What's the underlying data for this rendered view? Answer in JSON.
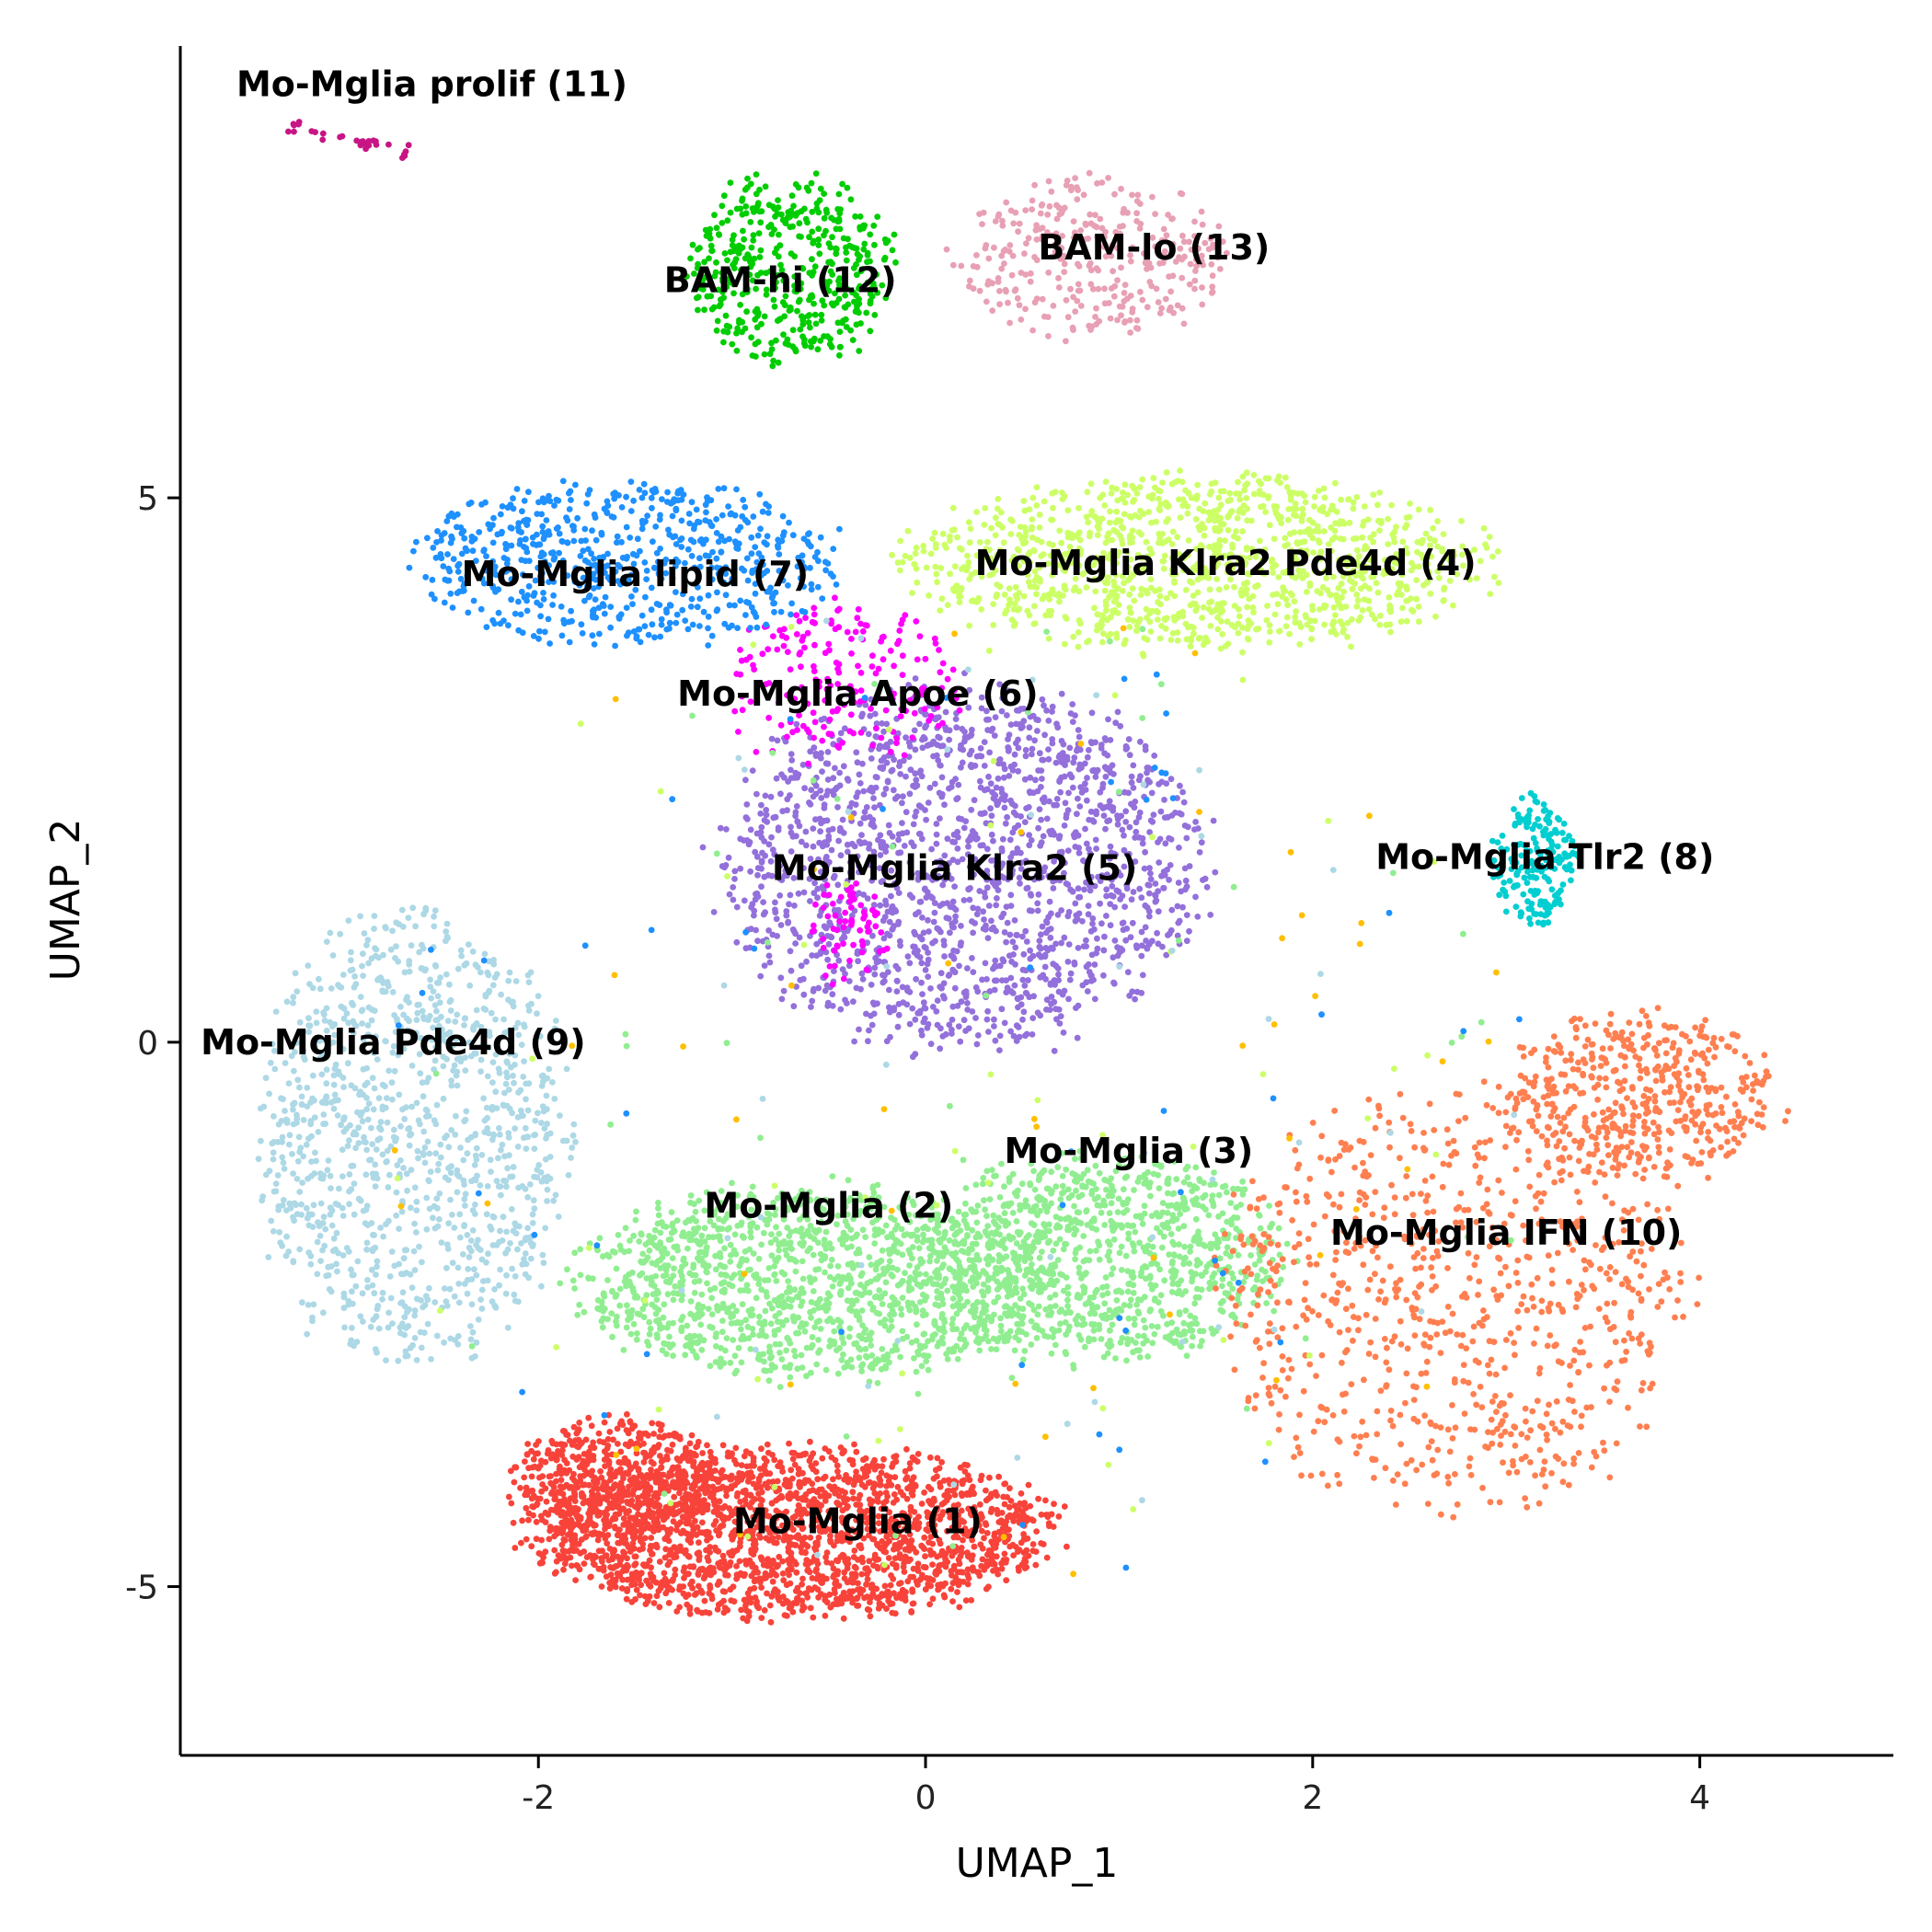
{
  "chart_data": {
    "type": "scatter",
    "title": "",
    "xlabel": "UMAP_1",
    "ylabel": "UMAP_2",
    "xlim": [
      -3.85,
      5.0
    ],
    "ylim": [
      -6.55,
      9.15
    ],
    "xticks": [
      -2,
      0,
      2,
      4
    ],
    "yticks": [
      -5,
      0,
      5
    ],
    "xtick_labels": [
      "-2",
      "0",
      "2",
      "4"
    ],
    "ytick_labels": [
      "-5",
      "0",
      "5"
    ],
    "legend": "none",
    "grid": false,
    "series": [
      {
        "cluster": 1,
        "label": "Mo-Mglia (1)",
        "color": "#f8433a",
        "label_pos": [
          -0.35,
          -4.4
        ],
        "count": 2600,
        "blobs": [
          [
            -0.7,
            -4.5,
            1.35,
            0.78,
            1.0
          ],
          [
            -1.6,
            -4.0,
            0.55,
            0.55,
            0.25
          ]
        ]
      },
      {
        "cluster": 2,
        "label": "Mo-Mglia (2)",
        "color": "#90ee90",
        "label_pos": [
          -0.5,
          -1.5
        ],
        "count": 1300,
        "blobs": [
          [
            -0.6,
            -2.2,
            1.2,
            0.9,
            1.0
          ]
        ]
      },
      {
        "cluster": 3,
        "label": "Mo-Mglia (3)",
        "color": "#90ee90",
        "label_pos": [
          1.05,
          -1.0
        ],
        "count": 1000,
        "blobs": [
          [
            0.9,
            -2.0,
            0.95,
            0.95,
            1.0
          ]
        ]
      },
      {
        "cluster": 4,
        "label": "Mo-Mglia Klra2 Pde4d (4)",
        "color": "#ccff66",
        "label_pos": [
          1.55,
          4.4
        ],
        "count": 1200,
        "blobs": [
          [
            1.4,
            4.4,
            1.5,
            0.8,
            1.0
          ]
        ]
      },
      {
        "cluster": 5,
        "label": "Mo-Mglia Klra2 (5)",
        "color": "#9370db",
        "label_pos": [
          0.15,
          1.6
        ],
        "count": 1700,
        "blobs": [
          [
            0.2,
            1.6,
            1.25,
            1.65,
            1.0
          ]
        ]
      },
      {
        "cluster": 6,
        "label": "Mo-Mglia Apoe (6)",
        "color": "#ff00ff",
        "label_pos": [
          -0.35,
          3.2
        ],
        "count": 260,
        "blobs": [
          [
            -0.45,
            3.3,
            0.65,
            0.75,
            1.0
          ],
          [
            -0.4,
            1.0,
            0.2,
            0.5,
            0.35
          ]
        ]
      },
      {
        "cluster": 7,
        "label": "Mo-Mglia lipid (7)",
        "color": "#1e90ff",
        "label_pos": [
          -1.5,
          4.3
        ],
        "count": 650,
        "blobs": [
          [
            -1.55,
            4.4,
            1.1,
            0.75,
            1.0
          ]
        ]
      },
      {
        "cluster": 8,
        "label": "Mo-Mglia Tlr2 (8)",
        "color": "#00ced1",
        "label_pos": [
          3.2,
          1.7
        ],
        "count": 190,
        "blobs": [
          [
            3.15,
            1.65,
            0.22,
            0.6,
            1.0
          ]
        ]
      },
      {
        "cluster": 9,
        "label": "Mo-Mglia Pde4d (9)",
        "color": "#add8e6",
        "label_pos": [
          -2.75,
          0.0
        ],
        "count": 1100,
        "blobs": [
          [
            -2.65,
            -0.9,
            0.8,
            2.1,
            1.0
          ]
        ]
      },
      {
        "cluster": 10,
        "label": "Mo-Mglia IFN (10)",
        "color": "#ff7f50",
        "label_pos": [
          3.0,
          -1.75
        ],
        "count": 1300,
        "blobs": [
          [
            2.7,
            -2.4,
            1.25,
            1.9,
            1.0
          ],
          [
            3.7,
            -0.5,
            0.7,
            0.8,
            0.6
          ]
        ]
      },
      {
        "cluster": 11,
        "label": "Mo-Mglia prolif (11)",
        "color": "#c71585",
        "label_pos": [
          -2.55,
          8.8
        ],
        "count": 30,
        "blobs": [
          [
            -2.95,
            8.35,
            0.18,
            0.06,
            1.0
          ]
        ]
      },
      {
        "cluster": 12,
        "label": "BAM-hi (12)",
        "color": "#00cd00",
        "label_pos": [
          -0.75,
          7.0
        ],
        "count": 450,
        "blobs": [
          [
            -0.7,
            7.1,
            0.55,
            0.85,
            1.0
          ]
        ]
      },
      {
        "cluster": 13,
        "label": "BAM-lo (13)",
        "color": "#e8a0b4",
        "label_pos": [
          1.18,
          7.3
        ],
        "count": 320,
        "blobs": [
          [
            0.85,
            7.2,
            0.7,
            0.75,
            1.0
          ]
        ]
      }
    ],
    "scattered_colors": [
      "#ffbf00",
      "#ccff66",
      "#add8e6",
      "#1e90ff",
      "#90ee90"
    ]
  }
}
